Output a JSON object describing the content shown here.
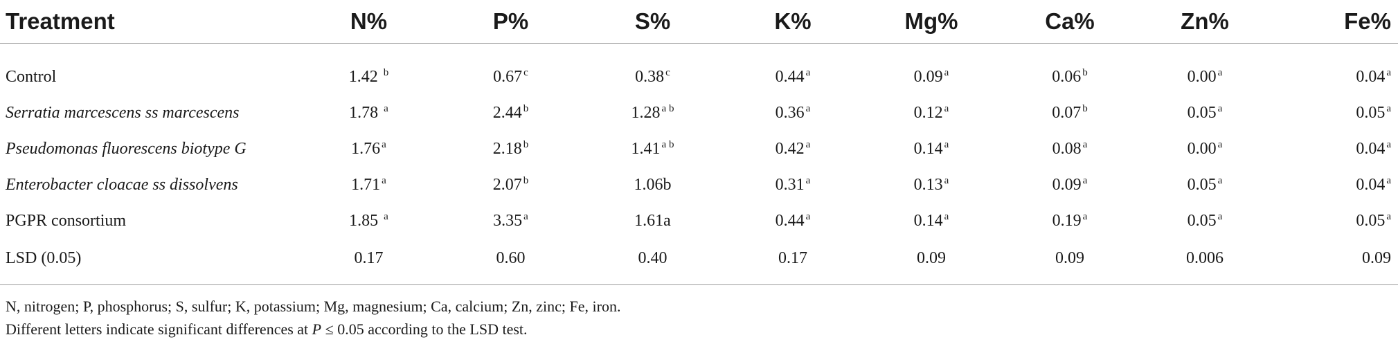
{
  "columns": [
    "Treatment",
    "N%",
    "P%",
    "S%",
    "K%",
    "Mg%",
    "Ca%",
    "Zn%",
    "Fe%"
  ],
  "rows": [
    {
      "treatment": "Control",
      "italic": false,
      "cells": [
        {
          "v": "1.42 ",
          "s": "b"
        },
        {
          "v": "0.67",
          "s": "c"
        },
        {
          "v": "0.38",
          "s": "c"
        },
        {
          "v": "0.44",
          "s": "a"
        },
        {
          "v": "0.09",
          "s": "a"
        },
        {
          "v": "0.06",
          "s": "b"
        },
        {
          "v": "0.00",
          "s": "a"
        },
        {
          "v": "0.04",
          "s": "a"
        }
      ]
    },
    {
      "treatment": "Serratia marcescens ss marcescens",
      "italic": true,
      "cells": [
        {
          "v": "1.78 ",
          "s": "a"
        },
        {
          "v": "2.44",
          "s": "b"
        },
        {
          "v": "1.28",
          "s": "a b"
        },
        {
          "v": "0.36",
          "s": "a"
        },
        {
          "v": "0.12",
          "s": "a"
        },
        {
          "v": "0.07",
          "s": "b"
        },
        {
          "v": "0.05",
          "s": "a"
        },
        {
          "v": "0.05",
          "s": "a"
        }
      ]
    },
    {
      "treatment": "Pseudomonas fluorescens biotype G",
      "italic": true,
      "cells": [
        {
          "v": "1.76",
          "s": "a"
        },
        {
          "v": "2.18",
          "s": "b"
        },
        {
          "v": "1.41",
          "s": "a b"
        },
        {
          "v": "0.42",
          "s": "a"
        },
        {
          "v": "0.14",
          "s": "a"
        },
        {
          "v": "0.08",
          "s": "a"
        },
        {
          "v": "0.00",
          "s": "a"
        },
        {
          "v": "0.04",
          "s": "a"
        }
      ]
    },
    {
      "treatment": "Enterobacter cloacae ss dissolvens",
      "italic": true,
      "cells": [
        {
          "v": "1.71",
          "s": "a"
        },
        {
          "v": "2.07",
          "s": "b"
        },
        {
          "v": "1.06b",
          "s": ""
        },
        {
          "v": "0.31",
          "s": "a"
        },
        {
          "v": "0.13",
          "s": "a"
        },
        {
          "v": "0.09",
          "s": "a"
        },
        {
          "v": "0.05",
          "s": "a"
        },
        {
          "v": "0.04",
          "s": "a"
        }
      ]
    },
    {
      "treatment": "PGPR consortium",
      "italic": false,
      "cells": [
        {
          "v": "1.85 ",
          "s": "a"
        },
        {
          "v": "3.35",
          "s": "a"
        },
        {
          "v": "1.61a",
          "s": ""
        },
        {
          "v": "0.44",
          "s": "a"
        },
        {
          "v": "0.14",
          "s": "a"
        },
        {
          "v": "0.19",
          "s": "a"
        },
        {
          "v": "0.05",
          "s": "a"
        },
        {
          "v": "0.05",
          "s": "a"
        }
      ]
    },
    {
      "treatment": "LSD (0.05)",
      "italic": false,
      "cells": [
        {
          "v": "0.17",
          "s": ""
        },
        {
          "v": "0.60",
          "s": ""
        },
        {
          "v": "0.40",
          "s": ""
        },
        {
          "v": "0.17",
          "s": ""
        },
        {
          "v": "0.09",
          "s": ""
        },
        {
          "v": "0.09",
          "s": ""
        },
        {
          "v": "0.006",
          "s": ""
        },
        {
          "v": "0.09",
          "s": ""
        }
      ]
    }
  ],
  "footnotes": {
    "abbreviations": "N, nitrogen; P, phosphorus; S, sulfur; K, potassium; Mg, magnesium; Ca, calcium; Zn, zinc; Fe, iron.",
    "significance_before": "Different letters indicate significant differences at ",
    "significance_p": "P",
    "significance_after": " ≤ 0.05 according to the LSD test."
  }
}
